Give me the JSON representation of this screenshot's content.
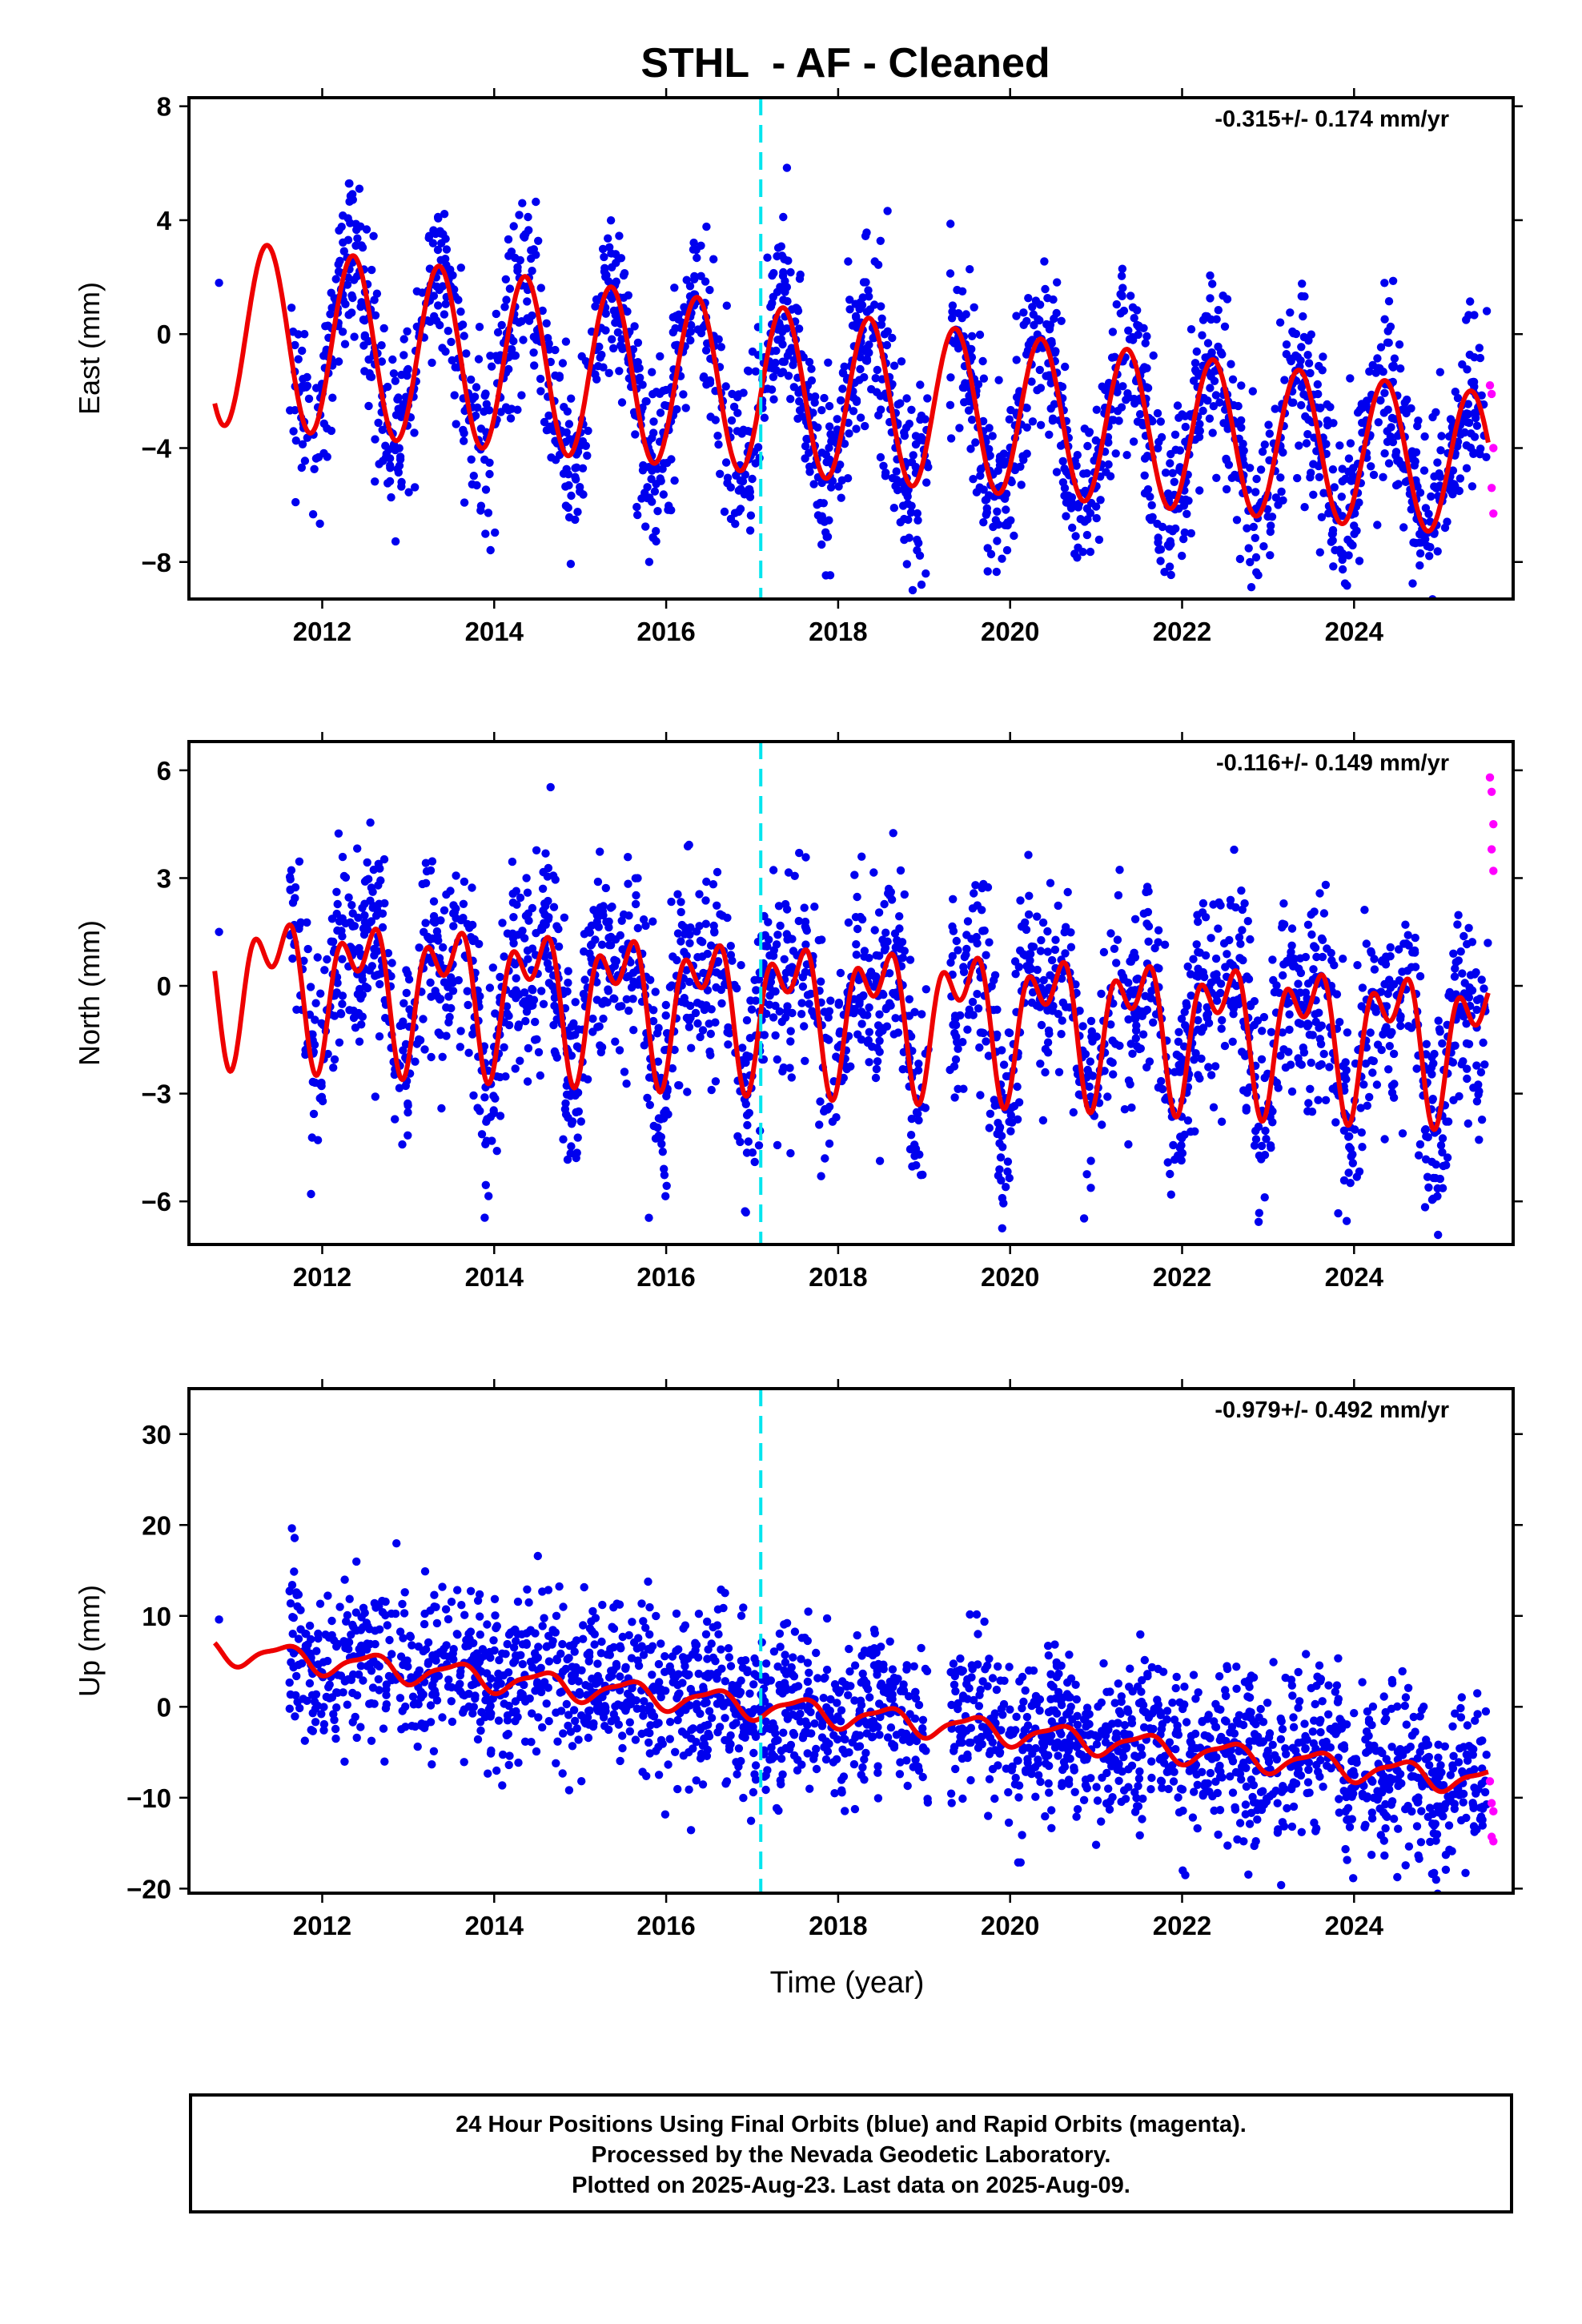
{
  "title": "STHL  - AF - Cleaned",
  "xlabel": "Time (year)",
  "footer": {
    "line1": "24 Hour Positions Using Final Orbits (blue) and Rapid Orbits (magenta).",
    "line2": "Processed by the Nevada Geodetic Laboratory.",
    "line3": "Plotted on 2025-Aug-23. Last data on 2025-Aug-09."
  },
  "colors": {
    "final": "#0000ee",
    "rapid": "#ff00ff",
    "model": "#ee0000",
    "event": "#00e5ee"
  },
  "chart_data": [
    {
      "type": "scatter",
      "ylabel": "East (mm)",
      "rate_text": "-0.315+/- 0.174 mm/yr",
      "xlim": [
        2010.45,
        2025.85
      ],
      "ylim": [
        -9.3,
        8.3
      ],
      "xticks": [
        2012,
        2014,
        2016,
        2018,
        2020,
        2022,
        2024
      ],
      "yticks": [
        -8,
        -4,
        0,
        4,
        8
      ],
      "event_line_x": 2017.1,
      "model": {
        "offset": 0.0,
        "rate": -0.315,
        "annual_amp": 2.9,
        "annual_phase": 0.11,
        "semiannual_amp": 0.0,
        "semiannual_phase": 0.0,
        "amp_trend": -0.05
      },
      "final_points": {
        "x_start": 2011.62,
        "x_end": 2025.56,
        "gap": [
          2019.05,
          2019.3
        ],
        "scatter": 1.55,
        "count": 2300,
        "early_point": [
          2010.8,
          1.8
        ]
      },
      "rapid_points": [
        [
          2025.58,
          -1.8
        ],
        [
          2025.6,
          -2.1
        ],
        [
          2025.62,
          -4.0
        ],
        [
          2025.6,
          -5.4
        ],
        [
          2025.62,
          -6.3
        ]
      ]
    },
    {
      "type": "scatter",
      "ylabel": "North (mm)",
      "rate_text": "-0.116+/- 0.149 mm/yr",
      "xlim": [
        2010.45,
        2025.85
      ],
      "ylim": [
        -7.2,
        6.8
      ],
      "xticks": [
        2012,
        2014,
        2016,
        2018,
        2020,
        2022,
        2024
      ],
      "yticks": [
        -6,
        -3,
        0,
        3,
        6
      ],
      "event_line_x": 2017.1,
      "model": {
        "offset": 0.2,
        "rate": -0.116,
        "annual_amp": 1.5,
        "annual_phase": 0.2,
        "semiannual_amp": 1.1,
        "semiannual_phase": 0.05,
        "amp_trend": 0.0
      },
      "final_points": {
        "x_start": 2011.62,
        "x_end": 2025.56,
        "gap": [
          2019.05,
          2019.3
        ],
        "scatter": 1.4,
        "count": 2300,
        "early_point": [
          2010.8,
          1.5
        ]
      },
      "rapid_points": [
        [
          2025.58,
          5.8
        ],
        [
          2025.6,
          5.4
        ],
        [
          2025.62,
          4.5
        ],
        [
          2025.6,
          3.8
        ],
        [
          2025.62,
          3.2
        ]
      ]
    },
    {
      "type": "scatter",
      "ylabel": "Up (mm)",
      "rate_text": "-0.979+/- 0.492 mm/yr",
      "xlim": [
        2010.45,
        2025.85
      ],
      "ylim": [
        -20.5,
        35.0
      ],
      "xticks": [
        2012,
        2014,
        2016,
        2018,
        2020,
        2022,
        2024
      ],
      "yticks": [
        -20,
        -10,
        0,
        10,
        20,
        30
      ],
      "event_line_x": 2017.1,
      "model": {
        "offset": 6.0,
        "rate": -0.979,
        "annual_amp": 1.3,
        "annual_phase": 0.3,
        "semiannual_amp": 0.4,
        "semiannual_phase": 0.1,
        "amp_trend": 0.0
      },
      "final_points": {
        "x_start": 2011.62,
        "x_end": 2025.56,
        "gap": [
          2019.05,
          2019.3
        ],
        "scatter": 4.5,
        "count": 2300,
        "early_point": [
          2010.8,
          9.6
        ]
      },
      "rapid_points": [
        [
          2025.58,
          -8.2
        ],
        [
          2025.6,
          -10.6
        ],
        [
          2025.62,
          -11.5
        ],
        [
          2025.6,
          -14.3
        ],
        [
          2025.62,
          -14.8
        ]
      ]
    }
  ]
}
